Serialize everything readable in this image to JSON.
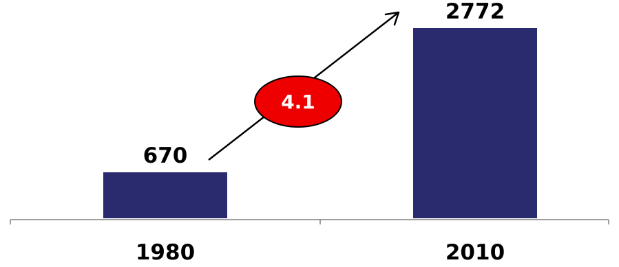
{
  "chart_data": {
    "type": "bar",
    "categories": [
      "1980",
      "2010"
    ],
    "values": [
      670,
      2772
    ],
    "value_labels": [
      "670",
      "2772"
    ],
    "ylim": [
      0,
      2772
    ],
    "grid": false,
    "legend": "none",
    "annotation": {
      "label": "4.1",
      "style": "arrow-with-ellipse-badge",
      "badge_fill": "#ee0000",
      "badge_stroke": "#000000",
      "badge_text_color": "#ffffff"
    },
    "colors": {
      "bar": "#2a2a6e",
      "axis": "#808080",
      "text": "#000000",
      "arrow": "#000000"
    }
  }
}
